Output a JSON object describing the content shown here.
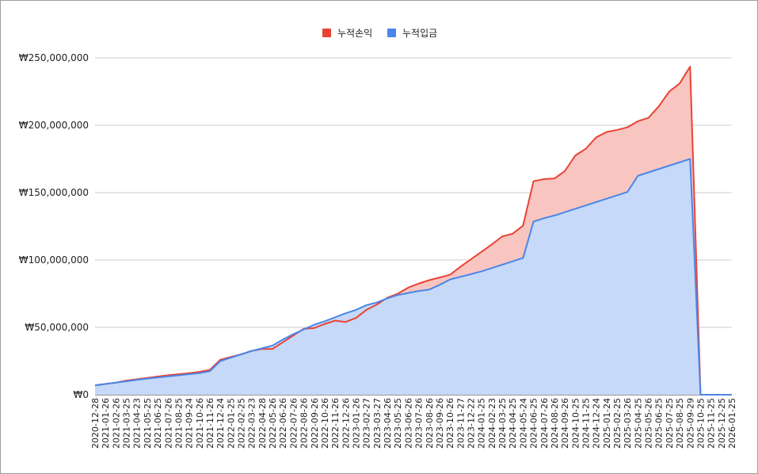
{
  "chart_data": {
    "type": "area",
    "title": "",
    "xlabel": "",
    "ylabel": "",
    "ylim": [
      0,
      250000000
    ],
    "yticks": [
      {
        "value": 0,
        "label": "₩0"
      },
      {
        "value": 50000000,
        "label": "₩50,000,000"
      },
      {
        "value": 100000000,
        "label": "₩100,000,000"
      },
      {
        "value": 150000000,
        "label": "₩150,000,000"
      },
      {
        "value": 200000000,
        "label": "₩200,000,000"
      },
      {
        "value": 250000000,
        "label": "₩250,000,000"
      }
    ],
    "grid": true,
    "legend_position": "top-center",
    "categories": [
      "2020-12-28",
      "2021-01-26",
      "2021-02-26",
      "2021-03-25",
      "2021-04-23",
      "2021-05-25",
      "2021-06-25",
      "2021-07-26",
      "2021-08-25",
      "2021-09-24",
      "2021-10-26",
      "2021-11-26",
      "2021-12-24",
      "2022-01-25",
      "2022-02-25",
      "2022-03-23",
      "2022-04-28",
      "2022-05-26",
      "2022-06-26",
      "2022-07-26",
      "2022-08-26",
      "2022-09-26",
      "2022-10-26",
      "2022-11-26",
      "2022-12-26",
      "2023-01-26",
      "2023-02-27",
      "2023-03-27",
      "2023-04-26",
      "2023-05-25",
      "2023-06-26",
      "2023-07-26",
      "2023-08-26",
      "2023-09-26",
      "2023-10-26",
      "2023-11-27",
      "2023-12-22",
      "2024-01-25",
      "2024-02-23",
      "2024-03-25",
      "2024-04-25",
      "2024-05-24",
      "2024-06-25",
      "2024-07-26",
      "2024-08-26",
      "2024-09-26",
      "2024-10-25",
      "2024-11-25",
      "2024-12-24",
      "2025-01-24",
      "2025-02-25",
      "2025-03-26",
      "2025-04-25",
      "2025-05-26",
      "2025-06-25",
      "2025-07-25",
      "2025-08-25",
      "2025-09-29",
      "2025-10-25",
      "2025-11-25",
      "2025-12-25",
      "2026-01-25"
    ],
    "series": [
      {
        "name": "누적손익",
        "color": "#ea4335",
        "fill": "#f9c5c1",
        "values": [
          7000000,
          8000000,
          9000000,
          10500000,
          11500000,
          12500000,
          13500000,
          14500000,
          15200000,
          16000000,
          17000000,
          18500000,
          26000000,
          28000000,
          30000000,
          32500000,
          34000000,
          34000000,
          39000000,
          44000000,
          49000000,
          49500000,
          52500000,
          55000000,
          54000000,
          57000000,
          63000000,
          67000000,
          72000000,
          75000000,
          79500000,
          82500000,
          85000000,
          87000000,
          89000000,
          95000000,
          100500000,
          106000000,
          111500000,
          117500000,
          119500000,
          125500000,
          158500000,
          160000000,
          160500000,
          166000000,
          177500000,
          182500000,
          191000000,
          195000000,
          196500000,
          198500000,
          203000000,
          205500000,
          214000000,
          225000000,
          231000000,
          243500000,
          0,
          0,
          0,
          0
        ]
      },
      {
        "name": "누적입금",
        "color": "#4a86e8",
        "fill": "#c6d9f8",
        "values": [
          7000000,
          8000000,
          9000000,
          10000000,
          11000000,
          12000000,
          12800000,
          13600000,
          14400000,
          15200000,
          16000000,
          17500000,
          25000000,
          27500000,
          30000000,
          32500000,
          34500000,
          36500000,
          41000000,
          45000000,
          48500000,
          52000000,
          54500000,
          57500000,
          60500000,
          63000000,
          66500000,
          68500000,
          71500000,
          74000000,
          75500000,
          77000000,
          78000000,
          81500000,
          85500000,
          87500000,
          89500000,
          91500000,
          94000000,
          96500000,
          99000000,
          101500000,
          128500000,
          131000000,
          133000000,
          135500000,
          138000000,
          140500000,
          143000000,
          145500000,
          148000000,
          150500000,
          162500000,
          165000000,
          167500000,
          170000000,
          172500000,
          175000000,
          0,
          0,
          0,
          0
        ]
      }
    ]
  }
}
